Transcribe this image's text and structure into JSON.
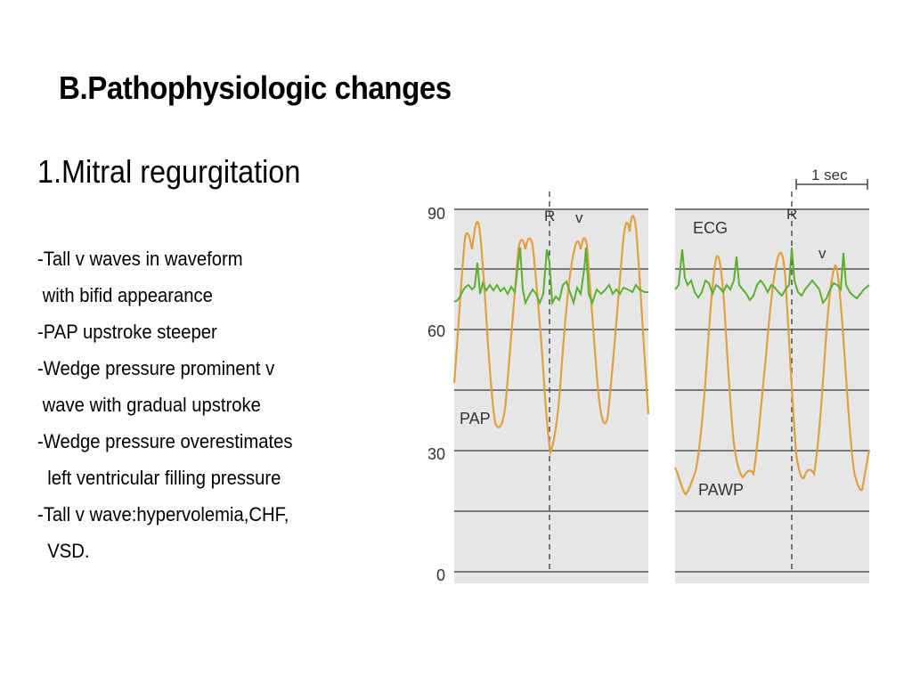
{
  "slide": {
    "title": "B.Pathophysiologic changes",
    "subtitle": "1.Mitral regurgitation",
    "bullets": [
      "-Tall v waves in waveform",
      " with bifid appearance",
      "-PAP upstroke steeper",
      "-Wedge pressure prominent v",
      " wave with gradual upstroke",
      "-Wedge pressure overestimates",
      "  left ventricular filling pressure",
      "-Tall v wave:hypervolemia,CHF,",
      "  VSD."
    ]
  },
  "figure": {
    "scale_label": "1 sec",
    "y_ticks": [
      "90",
      "60",
      "30",
      "0"
    ],
    "markers": {
      "r_left": "R",
      "v_left": "v",
      "r_right": "R",
      "v_right": "v"
    },
    "labels": {
      "ecg": "ECG",
      "pap": "PAP",
      "pawp": "PAWP"
    },
    "colors": {
      "pressure": "#e0a040",
      "ecg": "#5bb030",
      "panel": "#e6e6e6",
      "grid": "#555555"
    }
  }
}
